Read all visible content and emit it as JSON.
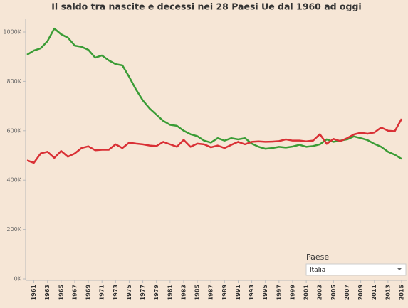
{
  "chart_data": {
    "type": "line",
    "title": "Il saldo tra nascite e decessi nei 28 Paesi Ue dal 1960 ad oggi",
    "x": [
      1960,
      1961,
      1962,
      1963,
      1964,
      1965,
      1966,
      1967,
      1968,
      1969,
      1970,
      1971,
      1972,
      1973,
      1974,
      1975,
      1976,
      1977,
      1978,
      1979,
      1980,
      1981,
      1982,
      1983,
      1984,
      1985,
      1986,
      1987,
      1988,
      1989,
      1990,
      1991,
      1992,
      1993,
      1994,
      1995,
      1996,
      1997,
      1998,
      1999,
      2000,
      2001,
      2002,
      2003,
      2004,
      2005,
      2006,
      2007,
      2008,
      2009,
      2010,
      2011,
      2012,
      2013,
      2014,
      2015
    ],
    "xlim": [
      1960,
      2015
    ],
    "xticks": [
      1961,
      1963,
      1965,
      1967,
      1969,
      1971,
      1973,
      1975,
      1977,
      1979,
      1981,
      1983,
      1985,
      1987,
      1989,
      1991,
      1993,
      1995,
      1997,
      1999,
      2001,
      2003,
      2005,
      2007,
      2009,
      2011,
      2013,
      2015
    ],
    "ylim": [
      0,
      1050000
    ],
    "yticks": [
      {
        "value": 0,
        "label": "0K"
      },
      {
        "value": 200000,
        "label": "200K"
      },
      {
        "value": 400000,
        "label": "400K"
      },
      {
        "value": 600000,
        "label": "600K"
      },
      {
        "value": 800000,
        "label": "800K"
      },
      {
        "value": 1000000,
        "label": "1000K"
      }
    ],
    "series": [
      {
        "color": "#3a9c35",
        "values": [
          908000,
          925000,
          934000,
          963000,
          1014000,
          991000,
          977000,
          945000,
          940000,
          928000,
          896000,
          905000,
          885000,
          870000,
          865000,
          818000,
          767000,
          723000,
          690000,
          665000,
          640000,
          624000,
          620000,
          600000,
          586000,
          578000,
          560000,
          552000,
          570000,
          560000,
          570000,
          565000,
          570000,
          548000,
          535000,
          527000,
          530000,
          535000,
          532000,
          536000,
          543000,
          535000,
          538000,
          545000,
          565000,
          555000,
          560000,
          565000,
          577000,
          570000,
          562000,
          547000,
          535000,
          515000,
          503000,
          486000
        ]
      },
      {
        "color": "#d93035",
        "values": [
          480000,
          470000,
          508000,
          515000,
          490000,
          518000,
          495000,
          508000,
          530000,
          537000,
          521000,
          523000,
          523000,
          545000,
          530000,
          552000,
          548000,
          545000,
          540000,
          538000,
          555000,
          545000,
          535000,
          563000,
          535000,
          548000,
          545000,
          533000,
          540000,
          530000,
          543000,
          555000,
          545000,
          555000,
          557000,
          555000,
          556000,
          558000,
          565000,
          560000,
          560000,
          557000,
          560000,
          586000,
          547000,
          567000,
          558000,
          570000,
          585000,
          592000,
          588000,
          593000,
          613000,
          600000,
          598000,
          648000
        ]
      }
    ]
  },
  "filter": {
    "label": "Paese",
    "value": "Italia"
  }
}
